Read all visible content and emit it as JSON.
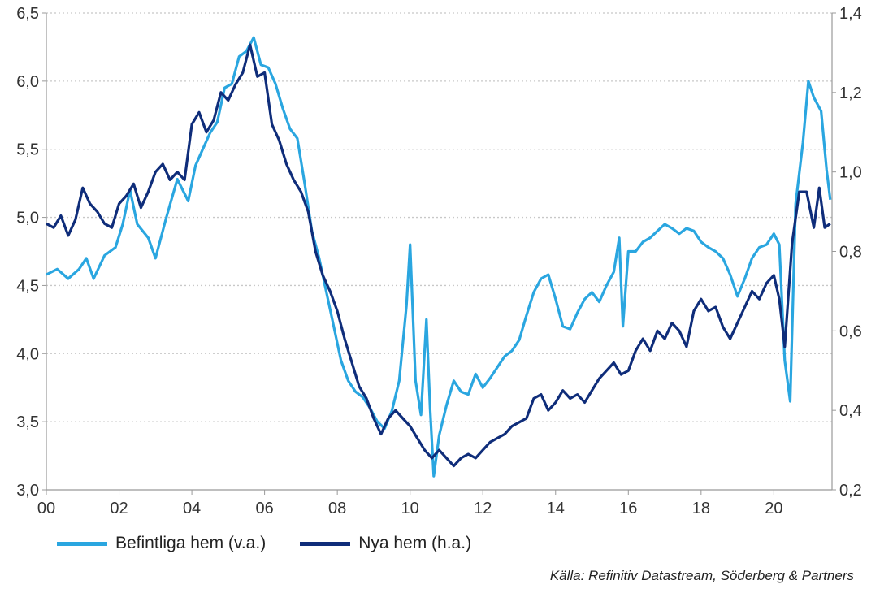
{
  "colors": {
    "befintliga": "#2aa6e0",
    "nya": "#0f2d7a",
    "grid": "#c8c8c8",
    "axis": "#999999"
  },
  "source": "Källa: Refinitiv Datastream, Söderberg & Partners",
  "chart_data": {
    "type": "line",
    "title": "",
    "x_axis": {
      "range": [
        2000,
        2021.6
      ],
      "tick_labels": [
        "00",
        "02",
        "04",
        "06",
        "08",
        "10",
        "12",
        "14",
        "16",
        "18",
        "20"
      ],
      "tick_values": [
        2000,
        2002,
        2004,
        2006,
        2008,
        2010,
        2012,
        2014,
        2016,
        2018,
        2020
      ]
    },
    "y_left": {
      "range": [
        3.0,
        6.5
      ],
      "tick_labels": [
        "3,0",
        "3,5",
        "4,0",
        "4,5",
        "5,0",
        "5,5",
        "6,0",
        "6,5"
      ],
      "tick_values": [
        3.0,
        3.5,
        4.0,
        4.5,
        5.0,
        5.5,
        6.0,
        6.5
      ]
    },
    "y_right": {
      "range": [
        0.2,
        1.4
      ],
      "tick_labels": [
        "0,2",
        "0,4",
        "0,6",
        "0,8",
        "1,0",
        "1,2",
        "1,4"
      ],
      "tick_values": [
        0.2,
        0.4,
        0.6,
        0.8,
        1.0,
        1.2,
        1.4
      ]
    },
    "grid": true,
    "legend_position": "bottom-left",
    "series": [
      {
        "name": "Befintliga hem (v.a.)",
        "axis": "left",
        "points": [
          [
            2000.0,
            4.58
          ],
          [
            2000.3,
            4.62
          ],
          [
            2000.6,
            4.55
          ],
          [
            2000.9,
            4.62
          ],
          [
            2001.1,
            4.7
          ],
          [
            2001.3,
            4.55
          ],
          [
            2001.6,
            4.72
          ],
          [
            2001.9,
            4.78
          ],
          [
            2002.1,
            4.95
          ],
          [
            2002.3,
            5.2
          ],
          [
            2002.5,
            4.95
          ],
          [
            2002.8,
            4.85
          ],
          [
            2003.0,
            4.7
          ],
          [
            2003.3,
            5.0
          ],
          [
            2003.6,
            5.28
          ],
          [
            2003.9,
            5.12
          ],
          [
            2004.1,
            5.38
          ],
          [
            2004.3,
            5.5
          ],
          [
            2004.5,
            5.62
          ],
          [
            2004.7,
            5.7
          ],
          [
            2004.9,
            5.95
          ],
          [
            2005.1,
            5.98
          ],
          [
            2005.3,
            6.18
          ],
          [
            2005.5,
            6.22
          ],
          [
            2005.7,
            6.32
          ],
          [
            2005.9,
            6.12
          ],
          [
            2006.1,
            6.1
          ],
          [
            2006.3,
            5.98
          ],
          [
            2006.5,
            5.8
          ],
          [
            2006.7,
            5.65
          ],
          [
            2006.9,
            5.58
          ],
          [
            2007.1,
            5.25
          ],
          [
            2007.3,
            4.9
          ],
          [
            2007.5,
            4.7
          ],
          [
            2007.7,
            4.45
          ],
          [
            2007.9,
            4.2
          ],
          [
            2008.1,
            3.95
          ],
          [
            2008.3,
            3.8
          ],
          [
            2008.5,
            3.72
          ],
          [
            2008.7,
            3.68
          ],
          [
            2008.9,
            3.6
          ],
          [
            2009.1,
            3.5
          ],
          [
            2009.3,
            3.45
          ],
          [
            2009.5,
            3.58
          ],
          [
            2009.7,
            3.8
          ],
          [
            2009.9,
            4.35
          ],
          [
            2010.0,
            4.8
          ],
          [
            2010.15,
            3.8
          ],
          [
            2010.3,
            3.55
          ],
          [
            2010.45,
            4.25
          ],
          [
            2010.55,
            3.6
          ],
          [
            2010.65,
            3.1
          ],
          [
            2010.8,
            3.4
          ],
          [
            2011.0,
            3.62
          ],
          [
            2011.2,
            3.8
          ],
          [
            2011.4,
            3.72
          ],
          [
            2011.6,
            3.7
          ],
          [
            2011.8,
            3.85
          ],
          [
            2012.0,
            3.75
          ],
          [
            2012.2,
            3.82
          ],
          [
            2012.4,
            3.9
          ],
          [
            2012.6,
            3.98
          ],
          [
            2012.8,
            4.02
          ],
          [
            2013.0,
            4.1
          ],
          [
            2013.2,
            4.28
          ],
          [
            2013.4,
            4.45
          ],
          [
            2013.6,
            4.55
          ],
          [
            2013.8,
            4.58
          ],
          [
            2014.0,
            4.4
          ],
          [
            2014.2,
            4.2
          ],
          [
            2014.4,
            4.18
          ],
          [
            2014.6,
            4.3
          ],
          [
            2014.8,
            4.4
          ],
          [
            2015.0,
            4.45
          ],
          [
            2015.2,
            4.38
          ],
          [
            2015.4,
            4.5
          ],
          [
            2015.6,
            4.6
          ],
          [
            2015.75,
            4.85
          ],
          [
            2015.85,
            4.2
          ],
          [
            2016.0,
            4.75
          ],
          [
            2016.2,
            4.75
          ],
          [
            2016.4,
            4.82
          ],
          [
            2016.6,
            4.85
          ],
          [
            2016.8,
            4.9
          ],
          [
            2017.0,
            4.95
          ],
          [
            2017.2,
            4.92
          ],
          [
            2017.4,
            4.88
          ],
          [
            2017.6,
            4.92
          ],
          [
            2017.8,
            4.9
          ],
          [
            2018.0,
            4.82
          ],
          [
            2018.2,
            4.78
          ],
          [
            2018.4,
            4.75
          ],
          [
            2018.6,
            4.7
          ],
          [
            2018.8,
            4.58
          ],
          [
            2019.0,
            4.42
          ],
          [
            2019.2,
            4.55
          ],
          [
            2019.4,
            4.7
          ],
          [
            2019.6,
            4.78
          ],
          [
            2019.8,
            4.8
          ],
          [
            2020.0,
            4.88
          ],
          [
            2020.15,
            4.8
          ],
          [
            2020.3,
            3.95
          ],
          [
            2020.45,
            3.65
          ],
          [
            2020.6,
            5.1
          ],
          [
            2020.8,
            5.55
          ],
          [
            2020.95,
            6.0
          ],
          [
            2021.1,
            5.88
          ],
          [
            2021.3,
            5.78
          ],
          [
            2021.45,
            5.35
          ],
          [
            2021.55,
            5.13
          ]
        ]
      },
      {
        "name": "Nya hem (h.a.)",
        "axis": "right",
        "points": [
          [
            2000.0,
            0.87
          ],
          [
            2000.2,
            0.86
          ],
          [
            2000.4,
            0.89
          ],
          [
            2000.6,
            0.84
          ],
          [
            2000.8,
            0.88
          ],
          [
            2001.0,
            0.96
          ],
          [
            2001.2,
            0.92
          ],
          [
            2001.4,
            0.9
          ],
          [
            2001.6,
            0.87
          ],
          [
            2001.8,
            0.86
          ],
          [
            2002.0,
            0.92
          ],
          [
            2002.2,
            0.94
          ],
          [
            2002.4,
            0.97
          ],
          [
            2002.6,
            0.91
          ],
          [
            2002.8,
            0.95
          ],
          [
            2003.0,
            1.0
          ],
          [
            2003.2,
            1.02
          ],
          [
            2003.4,
            0.98
          ],
          [
            2003.6,
            1.0
          ],
          [
            2003.8,
            0.98
          ],
          [
            2004.0,
            1.12
          ],
          [
            2004.2,
            1.15
          ],
          [
            2004.4,
            1.1
          ],
          [
            2004.6,
            1.13
          ],
          [
            2004.8,
            1.2
          ],
          [
            2005.0,
            1.18
          ],
          [
            2005.2,
            1.22
          ],
          [
            2005.4,
            1.25
          ],
          [
            2005.6,
            1.32
          ],
          [
            2005.8,
            1.24
          ],
          [
            2006.0,
            1.25
          ],
          [
            2006.2,
            1.12
          ],
          [
            2006.4,
            1.08
          ],
          [
            2006.6,
            1.02
          ],
          [
            2006.8,
            0.98
          ],
          [
            2007.0,
            0.95
          ],
          [
            2007.2,
            0.9
          ],
          [
            2007.4,
            0.8
          ],
          [
            2007.6,
            0.74
          ],
          [
            2007.8,
            0.7
          ],
          [
            2008.0,
            0.65
          ],
          [
            2008.2,
            0.58
          ],
          [
            2008.4,
            0.52
          ],
          [
            2008.6,
            0.46
          ],
          [
            2008.8,
            0.43
          ],
          [
            2009.0,
            0.38
          ],
          [
            2009.2,
            0.34
          ],
          [
            2009.4,
            0.38
          ],
          [
            2009.6,
            0.4
          ],
          [
            2009.8,
            0.38
          ],
          [
            2010.0,
            0.36
          ],
          [
            2010.2,
            0.33
          ],
          [
            2010.4,
            0.3
          ],
          [
            2010.6,
            0.28
          ],
          [
            2010.8,
            0.3
          ],
          [
            2011.0,
            0.28
          ],
          [
            2011.2,
            0.26
          ],
          [
            2011.4,
            0.28
          ],
          [
            2011.6,
            0.29
          ],
          [
            2011.8,
            0.28
          ],
          [
            2012.0,
            0.3
          ],
          [
            2012.2,
            0.32
          ],
          [
            2012.4,
            0.33
          ],
          [
            2012.6,
            0.34
          ],
          [
            2012.8,
            0.36
          ],
          [
            2013.0,
            0.37
          ],
          [
            2013.2,
            0.38
          ],
          [
            2013.4,
            0.43
          ],
          [
            2013.6,
            0.44
          ],
          [
            2013.8,
            0.4
          ],
          [
            2014.0,
            0.42
          ],
          [
            2014.2,
            0.45
          ],
          [
            2014.4,
            0.43
          ],
          [
            2014.6,
            0.44
          ],
          [
            2014.8,
            0.42
          ],
          [
            2015.0,
            0.45
          ],
          [
            2015.2,
            0.48
          ],
          [
            2015.4,
            0.5
          ],
          [
            2015.6,
            0.52
          ],
          [
            2015.8,
            0.49
          ],
          [
            2016.0,
            0.5
          ],
          [
            2016.2,
            0.55
          ],
          [
            2016.4,
            0.58
          ],
          [
            2016.6,
            0.55
          ],
          [
            2016.8,
            0.6
          ],
          [
            2017.0,
            0.58
          ],
          [
            2017.2,
            0.62
          ],
          [
            2017.4,
            0.6
          ],
          [
            2017.6,
            0.56
          ],
          [
            2017.8,
            0.65
          ],
          [
            2018.0,
            0.68
          ],
          [
            2018.2,
            0.65
          ],
          [
            2018.4,
            0.66
          ],
          [
            2018.6,
            0.61
          ],
          [
            2018.8,
            0.58
          ],
          [
            2019.0,
            0.62
          ],
          [
            2019.2,
            0.66
          ],
          [
            2019.4,
            0.7
          ],
          [
            2019.6,
            0.68
          ],
          [
            2019.8,
            0.72
          ],
          [
            2020.0,
            0.74
          ],
          [
            2020.15,
            0.68
          ],
          [
            2020.3,
            0.56
          ],
          [
            2020.5,
            0.82
          ],
          [
            2020.7,
            0.95
          ],
          [
            2020.9,
            0.95
          ],
          [
            2021.1,
            0.86
          ],
          [
            2021.25,
            0.96
          ],
          [
            2021.4,
            0.86
          ],
          [
            2021.55,
            0.87
          ]
        ]
      }
    ]
  }
}
